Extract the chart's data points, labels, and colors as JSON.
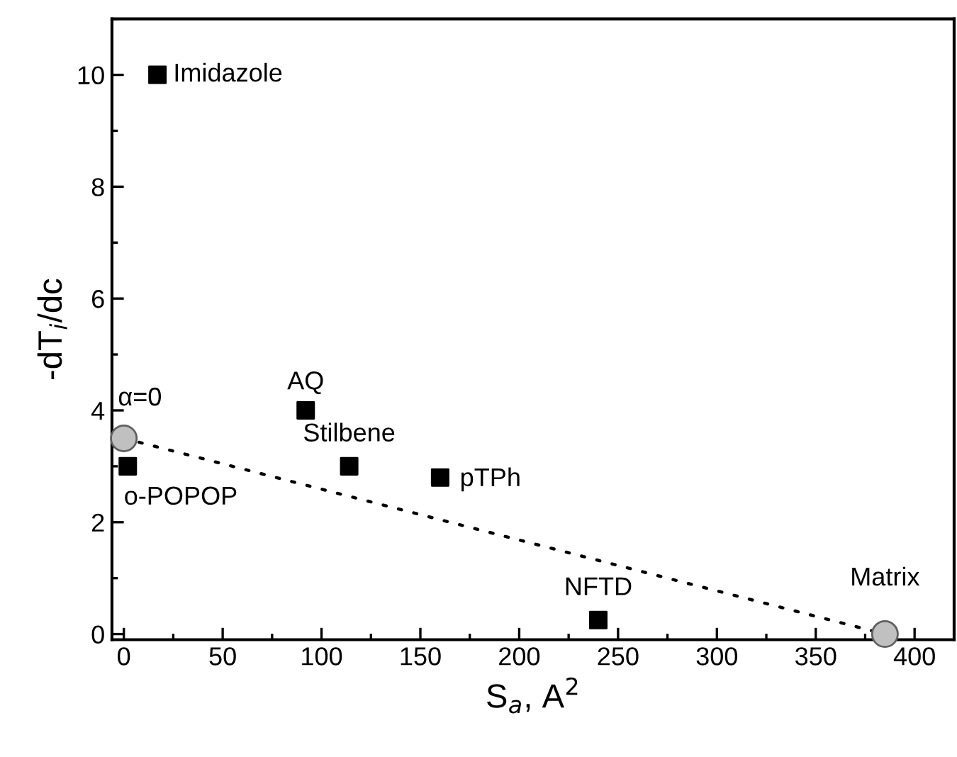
{
  "chart_data": {
    "type": "scatter",
    "xlabel": "S$_{a}$, A$^{2}$",
    "ylabel": "-dT$_{i}$/dc",
    "xlim": [
      -6,
      420
    ],
    "ylim": [
      -0.1,
      11
    ],
    "xticks": [
      0,
      50,
      100,
      150,
      200,
      250,
      300,
      350,
      400
    ],
    "yticks": [
      0,
      2,
      4,
      6,
      8,
      10
    ],
    "grid": false,
    "legend": false,
    "series": [
      {
        "type": "line",
        "color": "#000000",
        "line_style": "dotted",
        "marker": "none",
        "x": [
          0,
          385
        ],
        "values": [
          3.5,
          0
        ]
      },
      {
        "color": "#000000",
        "marker": "square",
        "x": [
          17,
          92,
          114,
          160,
          2,
          240
        ],
        "values": [
          10,
          4,
          3,
          2.8,
          3,
          0.25
        ]
      },
      {
        "color": "#c0c0c0",
        "marker": "circle",
        "x": [
          0,
          385
        ],
        "values": [
          3.5,
          0
        ]
      }
    ],
    "annotations": [
      {
        "text": "Imidazole",
        "x": 17,
        "y": 10
      },
      {
        "text": "AQ",
        "x": 92,
        "y": 4
      },
      {
        "text": "Stilbene",
        "x": 114,
        "y": 3
      },
      {
        "text": "pTPh",
        "x": 160,
        "y": 2.8
      },
      {
        "text": "o-POPOP",
        "x": 2,
        "y": 3
      },
      {
        "text": "NFTD",
        "x": 240,
        "y": 0.25
      },
      {
        "text": "α=0",
        "x": 0,
        "y": 3.5
      },
      {
        "text": "Matrix",
        "x": 385,
        "y": 0
      }
    ]
  }
}
